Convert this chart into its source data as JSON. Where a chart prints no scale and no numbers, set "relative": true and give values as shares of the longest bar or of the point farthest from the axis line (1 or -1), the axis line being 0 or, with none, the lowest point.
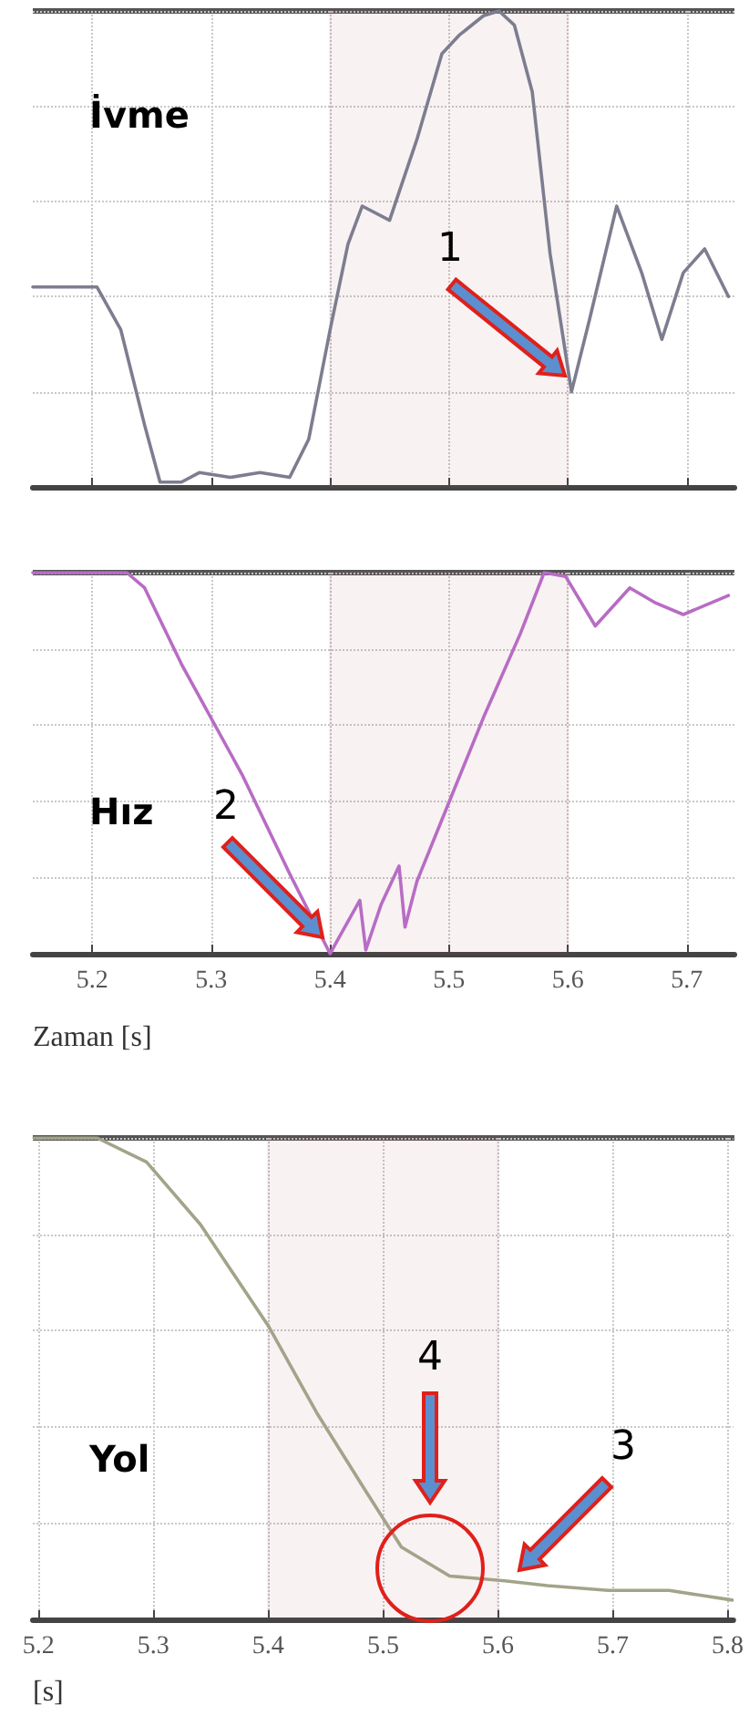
{
  "chart_data": [
    {
      "type": "line",
      "title": "İvme",
      "relative": true,
      "xlim": [
        5.15,
        5.74
      ],
      "xticks": [
        5.2,
        5.3,
        5.4,
        5.5,
        5.6,
        5.7
      ],
      "tick_labels": false,
      "grid": true,
      "marker": "none",
      "line_style": "solid",
      "series": [
        {
          "color": "#7d7d90",
          "x": [
            5.15,
            5.204,
            5.224,
            5.244,
            5.257,
            5.275,
            5.29,
            5.316,
            5.341,
            5.366,
            5.382,
            5.4,
            5.415,
            5.427,
            5.45,
            5.473,
            5.494,
            5.509,
            5.529,
            5.542,
            5.555,
            5.57,
            5.585,
            5.603,
            5.618,
            5.641,
            5.662,
            5.679,
            5.697,
            5.715,
            5.735
          ],
          "values": [
            0.42,
            0.42,
            0.33,
            0.13,
            0.01,
            0.01,
            0.03,
            0.02,
            0.03,
            0.02,
            0.1,
            0.33,
            0.51,
            0.59,
            0.56,
            0.73,
            0.91,
            0.95,
            0.99,
            1,
            0.97,
            0.83,
            0.49,
            0.2,
            0.35,
            0.59,
            0.45,
            0.31,
            0.45,
            0.5,
            0.4
          ]
        }
      ],
      "bands": [
        {
          "axis": "x",
          "from": 5.4,
          "to": 5.6,
          "color": "#a04858"
        }
      ],
      "annotations": [
        "1"
      ]
    },
    {
      "type": "line",
      "title": "Hız",
      "relative": true,
      "xlim": [
        5.15,
        5.74
      ],
      "xticks": [
        5.2,
        5.3,
        5.4,
        5.5,
        5.6,
        5.7
      ],
      "tick_labels": "x",
      "xlabel": "Zaman [s]",
      "grid": true,
      "marker": "none",
      "line_style": "solid",
      "series": [
        {
          "color": "#b86cc4",
          "x": [
            5.15,
            5.229,
            5.244,
            5.275,
            5.326,
            5.366,
            5.4,
            5.407,
            5.425,
            5.43,
            5.443,
            5.458,
            5.463,
            5.473,
            5.499,
            5.529,
            5.56,
            5.58,
            5.598,
            5.623,
            5.652,
            5.674,
            5.697,
            5.735
          ],
          "values": [
            1,
            1,
            0.96,
            0.76,
            0.47,
            0.21,
            0,
            0.04,
            0.14,
            0.01,
            0.13,
            0.23,
            0.07,
            0.19,
            0.39,
            0.62,
            0.84,
            1,
            0.99,
            0.86,
            0.96,
            0.92,
            0.89,
            0.94
          ]
        }
      ],
      "bands": [
        {
          "axis": "x",
          "from": 5.4,
          "to": 5.6,
          "color": "#a04858"
        }
      ],
      "annotations": [
        "2"
      ]
    },
    {
      "type": "line",
      "title": "Yol",
      "relative": true,
      "xlim": [
        5.195,
        5.805
      ],
      "xticks": [
        5.2,
        5.3,
        5.4,
        5.5,
        5.6,
        5.7,
        5.8
      ],
      "tick_labels": "x",
      "xlabel": "[s]",
      "grid": true,
      "marker": "none",
      "line_style": "solid",
      "series": [
        {
          "color": "#a3a389",
          "x": [
            5.196,
            5.251,
            5.294,
            5.341,
            5.4,
            5.442,
            5.484,
            5.516,
            5.558,
            5.606,
            5.643,
            5.696,
            5.749,
            5.804
          ],
          "values": [
            1,
            1,
            0.95,
            0.82,
            0.61,
            0.43,
            0.27,
            0.15,
            0.09,
            0.08,
            0.07,
            0.06,
            0.06,
            0.04
          ]
        }
      ],
      "bands": [
        {
          "axis": "x",
          "from": 5.4,
          "to": 5.6,
          "color": "#a04858"
        }
      ],
      "annotations": [
        "3",
        "4"
      ]
    }
  ]
}
